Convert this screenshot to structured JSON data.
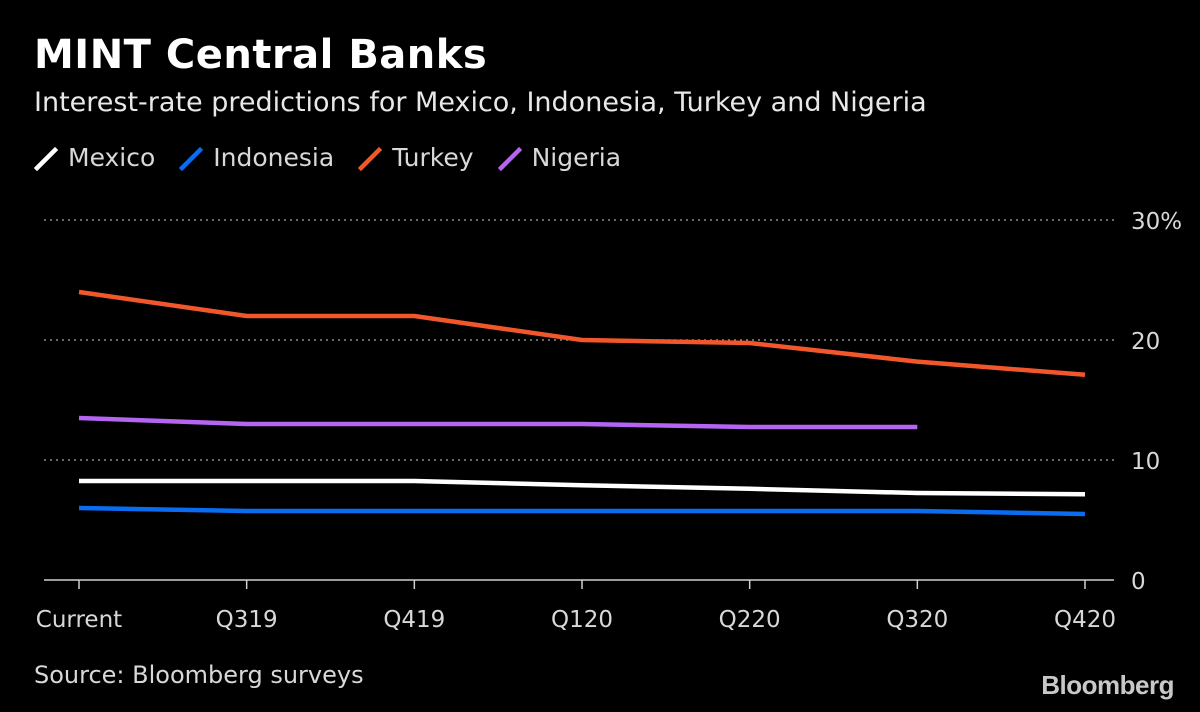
{
  "title": "MINT Central Banks",
  "subtitle": "Interest-rate predictions for Mexico, Indonesia, Turkey and Nigeria",
  "source": "Source: Bloomberg surveys",
  "brand": "Bloomberg",
  "chart_data": {
    "type": "line",
    "title": "MINT Central Banks",
    "subtitle": "Interest-rate predictions for Mexico, Indonesia, Turkey and Nigeria",
    "xlabel": "",
    "ylabel": "",
    "categories": [
      "Current",
      "Q319",
      "Q419",
      "Q120",
      "Q220",
      "Q320",
      "Q420"
    ],
    "ylim": [
      0,
      30
    ],
    "yticks": [
      0,
      10,
      20,
      30
    ],
    "ytick_labels": [
      "0",
      "10",
      "20",
      "30%"
    ],
    "grid": true,
    "legend": "top-left",
    "series": [
      {
        "name": "Mexico",
        "color": "#ffffff",
        "values": [
          8.25,
          8.25,
          8.25,
          7.9,
          7.6,
          7.25,
          7.15
        ]
      },
      {
        "name": "Indonesia",
        "color": "#0a6cf0",
        "values": [
          6.0,
          5.75,
          5.75,
          5.75,
          5.75,
          5.75,
          5.5
        ]
      },
      {
        "name": "Turkey",
        "color": "#f2572b",
        "values": [
          24.0,
          22.0,
          22.0,
          20.0,
          19.75,
          18.2,
          17.1
        ]
      },
      {
        "name": "Nigeria",
        "color": "#b565f2",
        "values": [
          13.5,
          13.0,
          13.0,
          13.0,
          12.75,
          12.75,
          null
        ]
      }
    ]
  }
}
